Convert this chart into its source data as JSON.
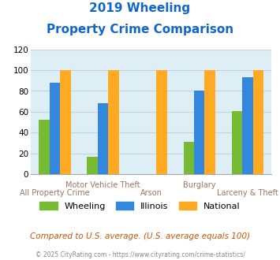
{
  "title_line1": "2019 Wheeling",
  "title_line2": "Property Crime Comparison",
  "categories": [
    "All Property Crime",
    "Motor Vehicle Theft",
    "Arson",
    "Burglary",
    "Larceny & Theft"
  ],
  "series": {
    "Wheeling": [
      52,
      17,
      0,
      31,
      61
    ],
    "Illinois": [
      88,
      68,
      0,
      80,
      93
    ],
    "National": [
      100,
      100,
      100,
      100,
      100
    ]
  },
  "colors": {
    "Wheeling": "#77bb33",
    "Illinois": "#3388dd",
    "National": "#ffaa22"
  },
  "ylim": [
    0,
    120
  ],
  "yticks": [
    0,
    20,
    40,
    60,
    80,
    100,
    120
  ],
  "plot_bg": "#ddeef5",
  "title_color": "#1166cc",
  "footer_text": "Compared to U.S. average. (U.S. average equals 100)",
  "footer_color": "#cc5500",
  "credit_text": "© 2025 CityRating.com - https://www.cityrating.com/crime-statistics/",
  "credit_color": "#888888",
  "xlabel_fontsize": 7,
  "ylabel_fontsize": 7.5,
  "legend_fontsize": 8,
  "title_fontsize1": 11,
  "title_fontsize2": 11,
  "bar_width": 0.22,
  "grid_color": "#c0d4e8",
  "upper_labels": [
    1,
    3
  ],
  "lower_labels": [
    0,
    2,
    4
  ]
}
